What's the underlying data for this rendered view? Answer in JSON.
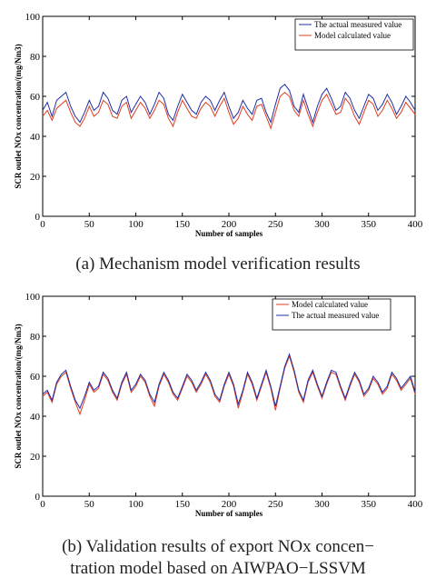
{
  "chart_data": [
    {
      "type": "line",
      "caption": "(a) Mechanism model verification results",
      "xlabel": "Number of samples",
      "ylabel": "SCR outlet NOx concentration/(mg/Nm3)",
      "xlim": [
        0,
        400
      ],
      "ylim": [
        0,
        100
      ],
      "xticks": [
        "0",
        "50",
        "100",
        "150",
        "200",
        "250",
        "300",
        "350",
        "400"
      ],
      "yticks": [
        "0",
        "20",
        "40",
        "60",
        "80",
        "100"
      ],
      "grid": false,
      "legend_position": "top-right",
      "series": [
        {
          "name": "The actual measured value",
          "color": "#1f2fa8",
          "x": [
            0,
            5,
            10,
            15,
            20,
            25,
            30,
            35,
            40,
            45,
            50,
            55,
            60,
            65,
            70,
            75,
            80,
            85,
            90,
            95,
            100,
            105,
            110,
            115,
            120,
            125,
            130,
            135,
            140,
            145,
            150,
            155,
            160,
            165,
            170,
            175,
            180,
            185,
            190,
            195,
            200,
            205,
            210,
            215,
            220,
            225,
            230,
            235,
            240,
            245,
            250,
            255,
            260,
            265,
            270,
            275,
            280,
            285,
            290,
            295,
            300,
            305,
            310,
            315,
            320,
            325,
            330,
            335,
            340,
            345,
            350,
            355,
            360,
            365,
            370,
            375,
            380,
            385,
            390,
            395,
            400
          ],
          "y": [
            53,
            57,
            50,
            58,
            60,
            62,
            55,
            50,
            47,
            52,
            58,
            53,
            55,
            62,
            59,
            53,
            51,
            58,
            60,
            52,
            56,
            60,
            57,
            51,
            56,
            62,
            59,
            51,
            48,
            55,
            61,
            57,
            53,
            51,
            57,
            60,
            58,
            53,
            58,
            62,
            55,
            49,
            52,
            58,
            54,
            51,
            58,
            59,
            52,
            47,
            56,
            64,
            66,
            63,
            55,
            52,
            61,
            54,
            47,
            55,
            61,
            64,
            59,
            53,
            55,
            62,
            59,
            53,
            49,
            55,
            61,
            59,
            53,
            56,
            61,
            57,
            51,
            55,
            60,
            57,
            53
          ]
        },
        {
          "name": "Model calculated value",
          "color": "#e03c1f",
          "x": [
            0,
            5,
            10,
            15,
            20,
            25,
            30,
            35,
            40,
            45,
            50,
            55,
            60,
            65,
            70,
            75,
            80,
            85,
            90,
            95,
            100,
            105,
            110,
            115,
            120,
            125,
            130,
            135,
            140,
            145,
            150,
            155,
            160,
            165,
            170,
            175,
            180,
            185,
            190,
            195,
            200,
            205,
            210,
            215,
            220,
            225,
            230,
            235,
            240,
            245,
            250,
            255,
            260,
            265,
            270,
            275,
            280,
            285,
            290,
            295,
            300,
            305,
            310,
            315,
            320,
            325,
            330,
            335,
            340,
            345,
            350,
            355,
            360,
            365,
            370,
            375,
            380,
            385,
            390,
            395,
            400
          ],
          "y": [
            50,
            53,
            48,
            54,
            56,
            58,
            52,
            47,
            45,
            49,
            55,
            50,
            52,
            58,
            56,
            50,
            49,
            55,
            57,
            49,
            53,
            57,
            54,
            49,
            53,
            58,
            56,
            49,
            45,
            52,
            58,
            54,
            50,
            49,
            54,
            57,
            55,
            50,
            55,
            59,
            52,
            46,
            49,
            55,
            51,
            48,
            55,
            56,
            50,
            44,
            52,
            60,
            62,
            60,
            53,
            50,
            58,
            51,
            45,
            52,
            58,
            61,
            56,
            51,
            52,
            59,
            56,
            50,
            46,
            52,
            58,
            56,
            50,
            53,
            58,
            54,
            49,
            52,
            57,
            54,
            51
          ]
        }
      ]
    },
    {
      "type": "line",
      "caption": "(b) Validation results of export NOx concen- tration model based on AIWPAO-LSSVM",
      "caption_lines": [
        "(b) Validation results of export NOx concen−",
        "tration model based on AIWPAO−LSSVM"
      ],
      "xlabel": "Number of samples",
      "ylabel": "SCR outlet NOx concentration/(mg/Nm3)",
      "xlim": [
        0,
        400
      ],
      "ylim": [
        0,
        100
      ],
      "xticks": [
        "0",
        "50",
        "100",
        "150",
        "200",
        "250",
        "300",
        "350",
        "400"
      ],
      "yticks": [
        "0",
        "20",
        "40",
        "60",
        "80",
        "100"
      ],
      "grid": false,
      "legend_position": "top-right",
      "series": [
        {
          "name": "Model calculated value",
          "color": "#e03c1f",
          "x": [
            0,
            5,
            10,
            15,
            20,
            25,
            30,
            35,
            40,
            45,
            50,
            55,
            60,
            65,
            70,
            75,
            80,
            85,
            90,
            95,
            100,
            105,
            110,
            115,
            120,
            125,
            130,
            135,
            140,
            145,
            150,
            155,
            160,
            165,
            170,
            175,
            180,
            185,
            190,
            195,
            200,
            205,
            210,
            215,
            220,
            225,
            230,
            235,
            240,
            245,
            250,
            255,
            260,
            265,
            270,
            275,
            280,
            285,
            290,
            295,
            300,
            305,
            310,
            315,
            320,
            325,
            330,
            335,
            340,
            345,
            350,
            355,
            360,
            365,
            370,
            375,
            380,
            385,
            390,
            395,
            400
          ],
          "y": [
            50,
            52,
            47,
            56,
            60,
            62,
            54,
            47,
            41,
            48,
            56,
            52,
            54,
            61,
            58,
            52,
            48,
            56,
            61,
            52,
            55,
            60,
            57,
            50,
            45,
            55,
            61,
            57,
            51,
            48,
            54,
            60,
            57,
            52,
            56,
            61,
            57,
            50,
            47,
            55,
            61,
            55,
            44,
            52,
            61,
            56,
            48,
            55,
            62,
            54,
            43,
            54,
            64,
            70,
            62,
            52,
            47,
            57,
            62,
            55,
            49,
            56,
            62,
            61,
            54,
            48,
            55,
            61,
            57,
            50,
            53,
            59,
            56,
            51,
            54,
            61,
            58,
            53,
            56,
            59,
            51
          ]
        },
        {
          "name": "The actual measured value",
          "color": "#1f2fa8",
          "x": [
            0,
            5,
            10,
            15,
            20,
            25,
            30,
            35,
            40,
            45,
            50,
            55,
            60,
            65,
            70,
            75,
            80,
            85,
            90,
            95,
            100,
            105,
            110,
            115,
            120,
            125,
            130,
            135,
            140,
            145,
            150,
            155,
            160,
            165,
            170,
            175,
            180,
            185,
            190,
            195,
            200,
            205,
            210,
            215,
            220,
            225,
            230,
            235,
            240,
            245,
            250,
            255,
            260,
            265,
            270,
            275,
            280,
            285,
            290,
            295,
            300,
            305,
            310,
            315,
            320,
            325,
            330,
            335,
            340,
            345,
            350,
            355,
            360,
            365,
            370,
            375,
            380,
            385,
            390,
            395,
            400
          ],
          "y": [
            51,
            53,
            48,
            57,
            61,
            63,
            55,
            48,
            44,
            50,
            57,
            53,
            55,
            62,
            59,
            53,
            49,
            57,
            62,
            53,
            56,
            61,
            58,
            51,
            47,
            56,
            62,
            58,
            52,
            49,
            55,
            61,
            58,
            53,
            57,
            62,
            58,
            51,
            48,
            56,
            62,
            56,
            46,
            53,
            62,
            57,
            49,
            56,
            63,
            55,
            45,
            55,
            65,
            71,
            63,
            53,
            48,
            58,
            63,
            56,
            50,
            57,
            63,
            62,
            55,
            49,
            56,
            62,
            58,
            51,
            54,
            60,
            57,
            52,
            55,
            62,
            59,
            54,
            57,
            60,
            52
          ]
        }
      ]
    }
  ]
}
